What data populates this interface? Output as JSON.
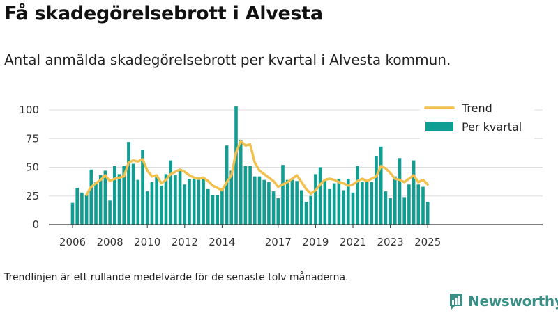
{
  "title": "Få skadegörelsebrott i Alvesta",
  "subtitle": "Antal anmälda skadegörelsebrott per kvartal i Alvesta kommun.",
  "footnote": "Trendlinjen är ett rullande medelvärde för de senaste tolv månaderna.",
  "brand": {
    "name": "Newsworthy",
    "icon": "bar-chart-logo-icon"
  },
  "colors": {
    "bars": "#109e93",
    "trend": "#f2c04f",
    "grid": "#dddddd",
    "axis": "#333333",
    "brand": "#3a8f86"
  },
  "chart_data": {
    "type": "bar",
    "x_start": "2006-Q1",
    "categories": [
      "2006-Q1",
      "2006-Q2",
      "2006-Q3",
      "2006-Q4",
      "2007-Q1",
      "2007-Q2",
      "2007-Q3",
      "2007-Q4",
      "2008-Q1",
      "2008-Q2",
      "2008-Q3",
      "2008-Q4",
      "2009-Q1",
      "2009-Q2",
      "2009-Q3",
      "2009-Q4",
      "2010-Q1",
      "2010-Q2",
      "2010-Q3",
      "2010-Q4",
      "2011-Q1",
      "2011-Q2",
      "2011-Q3",
      "2011-Q4",
      "2012-Q1",
      "2012-Q2",
      "2012-Q3",
      "2012-Q4",
      "2013-Q1",
      "2013-Q2",
      "2013-Q3",
      "2013-Q4",
      "2014-Q1",
      "2014-Q2",
      "2014-Q3",
      "2014-Q4",
      "2015-Q1",
      "2015-Q2",
      "2015-Q3",
      "2015-Q4",
      "2016-Q1",
      "2016-Q2",
      "2016-Q3",
      "2016-Q4",
      "2017-Q1",
      "2017-Q2",
      "2017-Q3",
      "2017-Q4",
      "2018-Q1",
      "2018-Q2",
      "2018-Q3",
      "2018-Q4",
      "2019-Q1",
      "2019-Q2",
      "2019-Q3",
      "2019-Q4",
      "2020-Q1",
      "2020-Q2",
      "2020-Q3",
      "2020-Q4",
      "2021-Q1",
      "2021-Q2",
      "2021-Q3",
      "2021-Q4",
      "2022-Q1",
      "2022-Q2",
      "2022-Q3",
      "2022-Q4",
      "2023-Q1",
      "2023-Q2",
      "2023-Q3",
      "2023-Q4",
      "2024-Q1",
      "2024-Q2",
      "2024-Q3",
      "2024-Q4",
      "2025-Q1"
    ],
    "series": [
      {
        "name": "Per kvartal",
        "type": "bar",
        "values": [
          19,
          32,
          28,
          26,
          48,
          37,
          43,
          47,
          21,
          51,
          44,
          51,
          72,
          53,
          39,
          65,
          29,
          37,
          43,
          34,
          44,
          56,
          43,
          47,
          35,
          40,
          40,
          39,
          40,
          31,
          26,
          26,
          31,
          69,
          47,
          103,
          74,
          51,
          51,
          42,
          42,
          39,
          37,
          29,
          23,
          52,
          39,
          39,
          38,
          30,
          20,
          25,
          44,
          50,
          39,
          31,
          36,
          40,
          30,
          40,
          28,
          51,
          37,
          37,
          37,
          60,
          68,
          29,
          23,
          42,
          58,
          24,
          35,
          56,
          35,
          33,
          20
        ]
      },
      {
        "name": "Trend",
        "type": "line",
        "values": [
          null,
          null,
          null,
          26,
          33,
          36,
          39,
          43,
          38,
          40,
          41,
          42,
          54,
          56,
          55,
          57,
          47,
          42,
          43,
          36,
          39,
          44,
          46,
          48,
          46,
          43,
          41,
          40,
          41,
          38,
          34,
          32,
          30,
          37,
          43,
          63,
          73,
          69,
          70,
          54,
          47,
          44,
          41,
          38,
          33,
          35,
          37,
          40,
          43,
          37,
          31,
          27,
          30,
          35,
          39,
          40,
          39,
          37,
          36,
          34,
          35,
          38,
          40,
          38,
          40,
          42,
          51,
          49,
          45,
          40,
          39,
          37,
          40,
          43,
          37,
          39,
          35
        ]
      }
    ],
    "x_tick_labels": [
      "2006",
      "2008",
      "2010",
      "2012",
      "2014",
      "2017",
      "2019",
      "2021",
      "2023",
      "2025"
    ],
    "y_tick_labels": [
      "0",
      "25",
      "50",
      "75",
      "100"
    ],
    "ylim": [
      0,
      110
    ],
    "grid": true,
    "legend": {
      "position": "top-right",
      "entries": [
        "Trend",
        "Per kvartal"
      ]
    }
  }
}
